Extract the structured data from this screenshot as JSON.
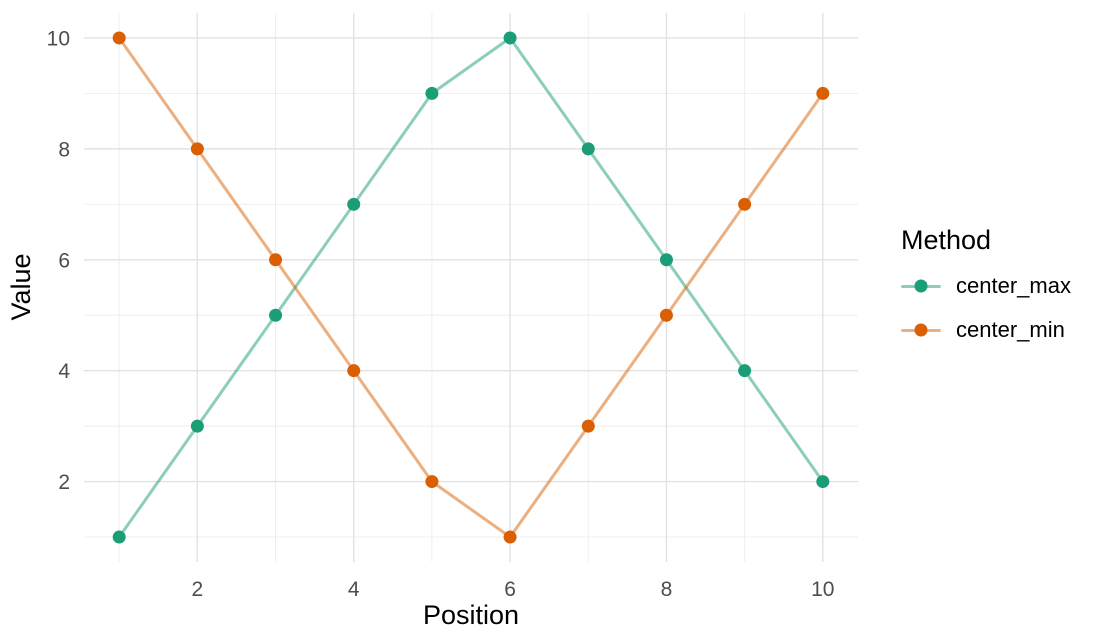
{
  "chart_data": {
    "type": "line",
    "title": "",
    "xlabel": "Position",
    "ylabel": "Value",
    "x": [
      1,
      2,
      3,
      4,
      5,
      6,
      7,
      8,
      9,
      10
    ],
    "series": [
      {
        "name": "center_max",
        "color": "#1B9E77",
        "line_color": "rgba(27,158,119,0.5)",
        "values": [
          1,
          3,
          5,
          7,
          9,
          10,
          8,
          6,
          4,
          2
        ]
      },
      {
        "name": "center_min",
        "color": "#D95F02",
        "line_color": "rgba(217,95,2,0.5)",
        "values": [
          10,
          8,
          6,
          4,
          2,
          1,
          3,
          5,
          7,
          9
        ]
      }
    ],
    "xticks": [
      2,
      4,
      6,
      8,
      10
    ],
    "yticks": [
      2,
      4,
      6,
      8,
      10
    ],
    "xticks_minor": [
      1,
      3,
      5,
      7,
      9
    ],
    "yticks_minor": [
      1,
      3,
      5,
      7,
      9
    ],
    "xlim": [
      0.55,
      10.45
    ],
    "ylim": [
      0.55,
      10.45
    ],
    "grid": {
      "show": true,
      "major_color": "#E2E2E2",
      "minor_color": "#EDEDED"
    },
    "axis_text_color": "#4D4D4D",
    "axis_title_color": "#000000",
    "background": "#FFFFFF",
    "legend": {
      "title": "Method",
      "position": "right"
    }
  }
}
